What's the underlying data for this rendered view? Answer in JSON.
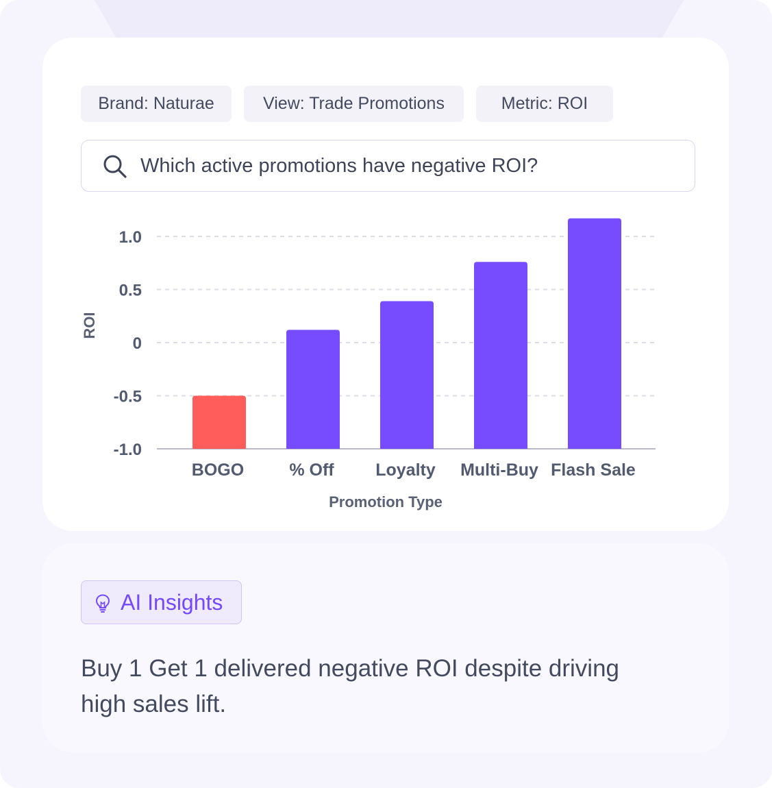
{
  "filters": {
    "brand": "Brand: Naturae",
    "view": "View: Trade Promotions",
    "metric": "Metric: ROI"
  },
  "search": {
    "query": "Which active promotions have negative ROI?"
  },
  "chart_data": {
    "type": "bar",
    "categories": [
      "BOGO",
      "% Off",
      "Loyalty",
      "Multi-Buy",
      "Flash Sale"
    ],
    "values": [
      -0.5,
      0.12,
      0.39,
      0.76,
      1.17
    ],
    "xlabel": "Promotion Type",
    "ylabel": "ROI",
    "ylim": [
      -1.0,
      1.2
    ],
    "yticks": [
      1.0,
      0.5,
      0,
      -0.5,
      -1.0
    ],
    "ytick_labels": [
      "1.0",
      "0.5",
      "0",
      "-0.5",
      "-1.0"
    ],
    "grid": true,
    "colors": {
      "positive": "#774cff",
      "negative": "#ff5c5c"
    }
  },
  "insights": {
    "badge_label": "AI Insights",
    "text": "Buy 1 Get 1 delivered negative ROI despite driving high sales lift.",
    "accent_color": "#7448ff",
    "icon": "lightbulb-icon"
  }
}
